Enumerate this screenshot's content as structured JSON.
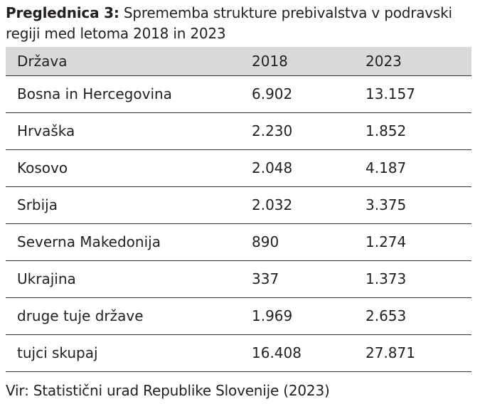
{
  "caption": {
    "label": "Preglednica 3:",
    "text": "Sprememba strukture prebivalstva v podravski regiji med letoma 2018 in 2023"
  },
  "table": {
    "headers": [
      "Država",
      "2018",
      "2023"
    ],
    "rows": [
      [
        "Bosna in Hercegovina",
        "6.902",
        "13.157"
      ],
      [
        "Hrvaška",
        "2.230",
        "1.852"
      ],
      [
        "Kosovo",
        "2.048",
        "4.187"
      ],
      [
        "Srbija",
        "2.032",
        "3.375"
      ],
      [
        "Severna Makedonija",
        "890",
        "1.274"
      ],
      [
        "Ukrajina",
        "337",
        "1.373"
      ],
      [
        "druge tuje države",
        "1.969",
        "2.653"
      ],
      [
        "tujci skupaj",
        "16.408",
        "27.871"
      ]
    ]
  },
  "source": "Vir: Statistični urad Republike Slovenije (2023)",
  "colors": {
    "header_background": "#d9d9d9",
    "rule": "#333333",
    "text": "#231f20"
  }
}
